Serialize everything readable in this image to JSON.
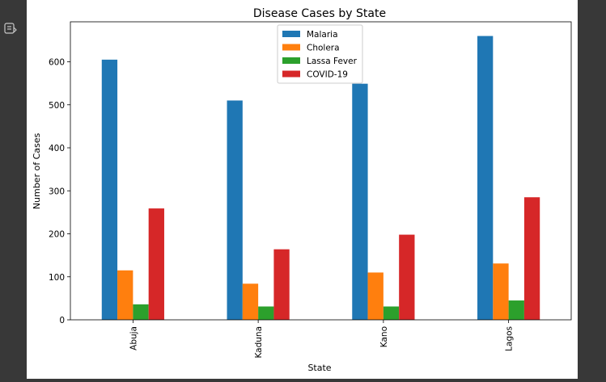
{
  "chart_data": {
    "type": "bar",
    "title": "Disease Cases by State",
    "xlabel": "State",
    "ylabel": "Number of Cases",
    "categories": [
      "Abuja",
      "Kaduna",
      "Kano",
      "Lagos"
    ],
    "series": [
      {
        "name": "Malaria",
        "color": "#1f77b4",
        "values": [
          605,
          510,
          549,
          660
        ]
      },
      {
        "name": "Cholera",
        "color": "#ff7f0e",
        "values": [
          115,
          84,
          110,
          131
        ]
      },
      {
        "name": "Lassa Fever",
        "color": "#2ca02c",
        "values": [
          36,
          31,
          31,
          45
        ]
      },
      {
        "name": "COVID-19",
        "color": "#d62728",
        "values": [
          259,
          164,
          198,
          285
        ]
      }
    ],
    "yticks": [
      0,
      100,
      200,
      300,
      400,
      500,
      600
    ],
    "ylim": [
      0,
      693
    ],
    "legend_position": "upper center",
    "grid": false
  }
}
